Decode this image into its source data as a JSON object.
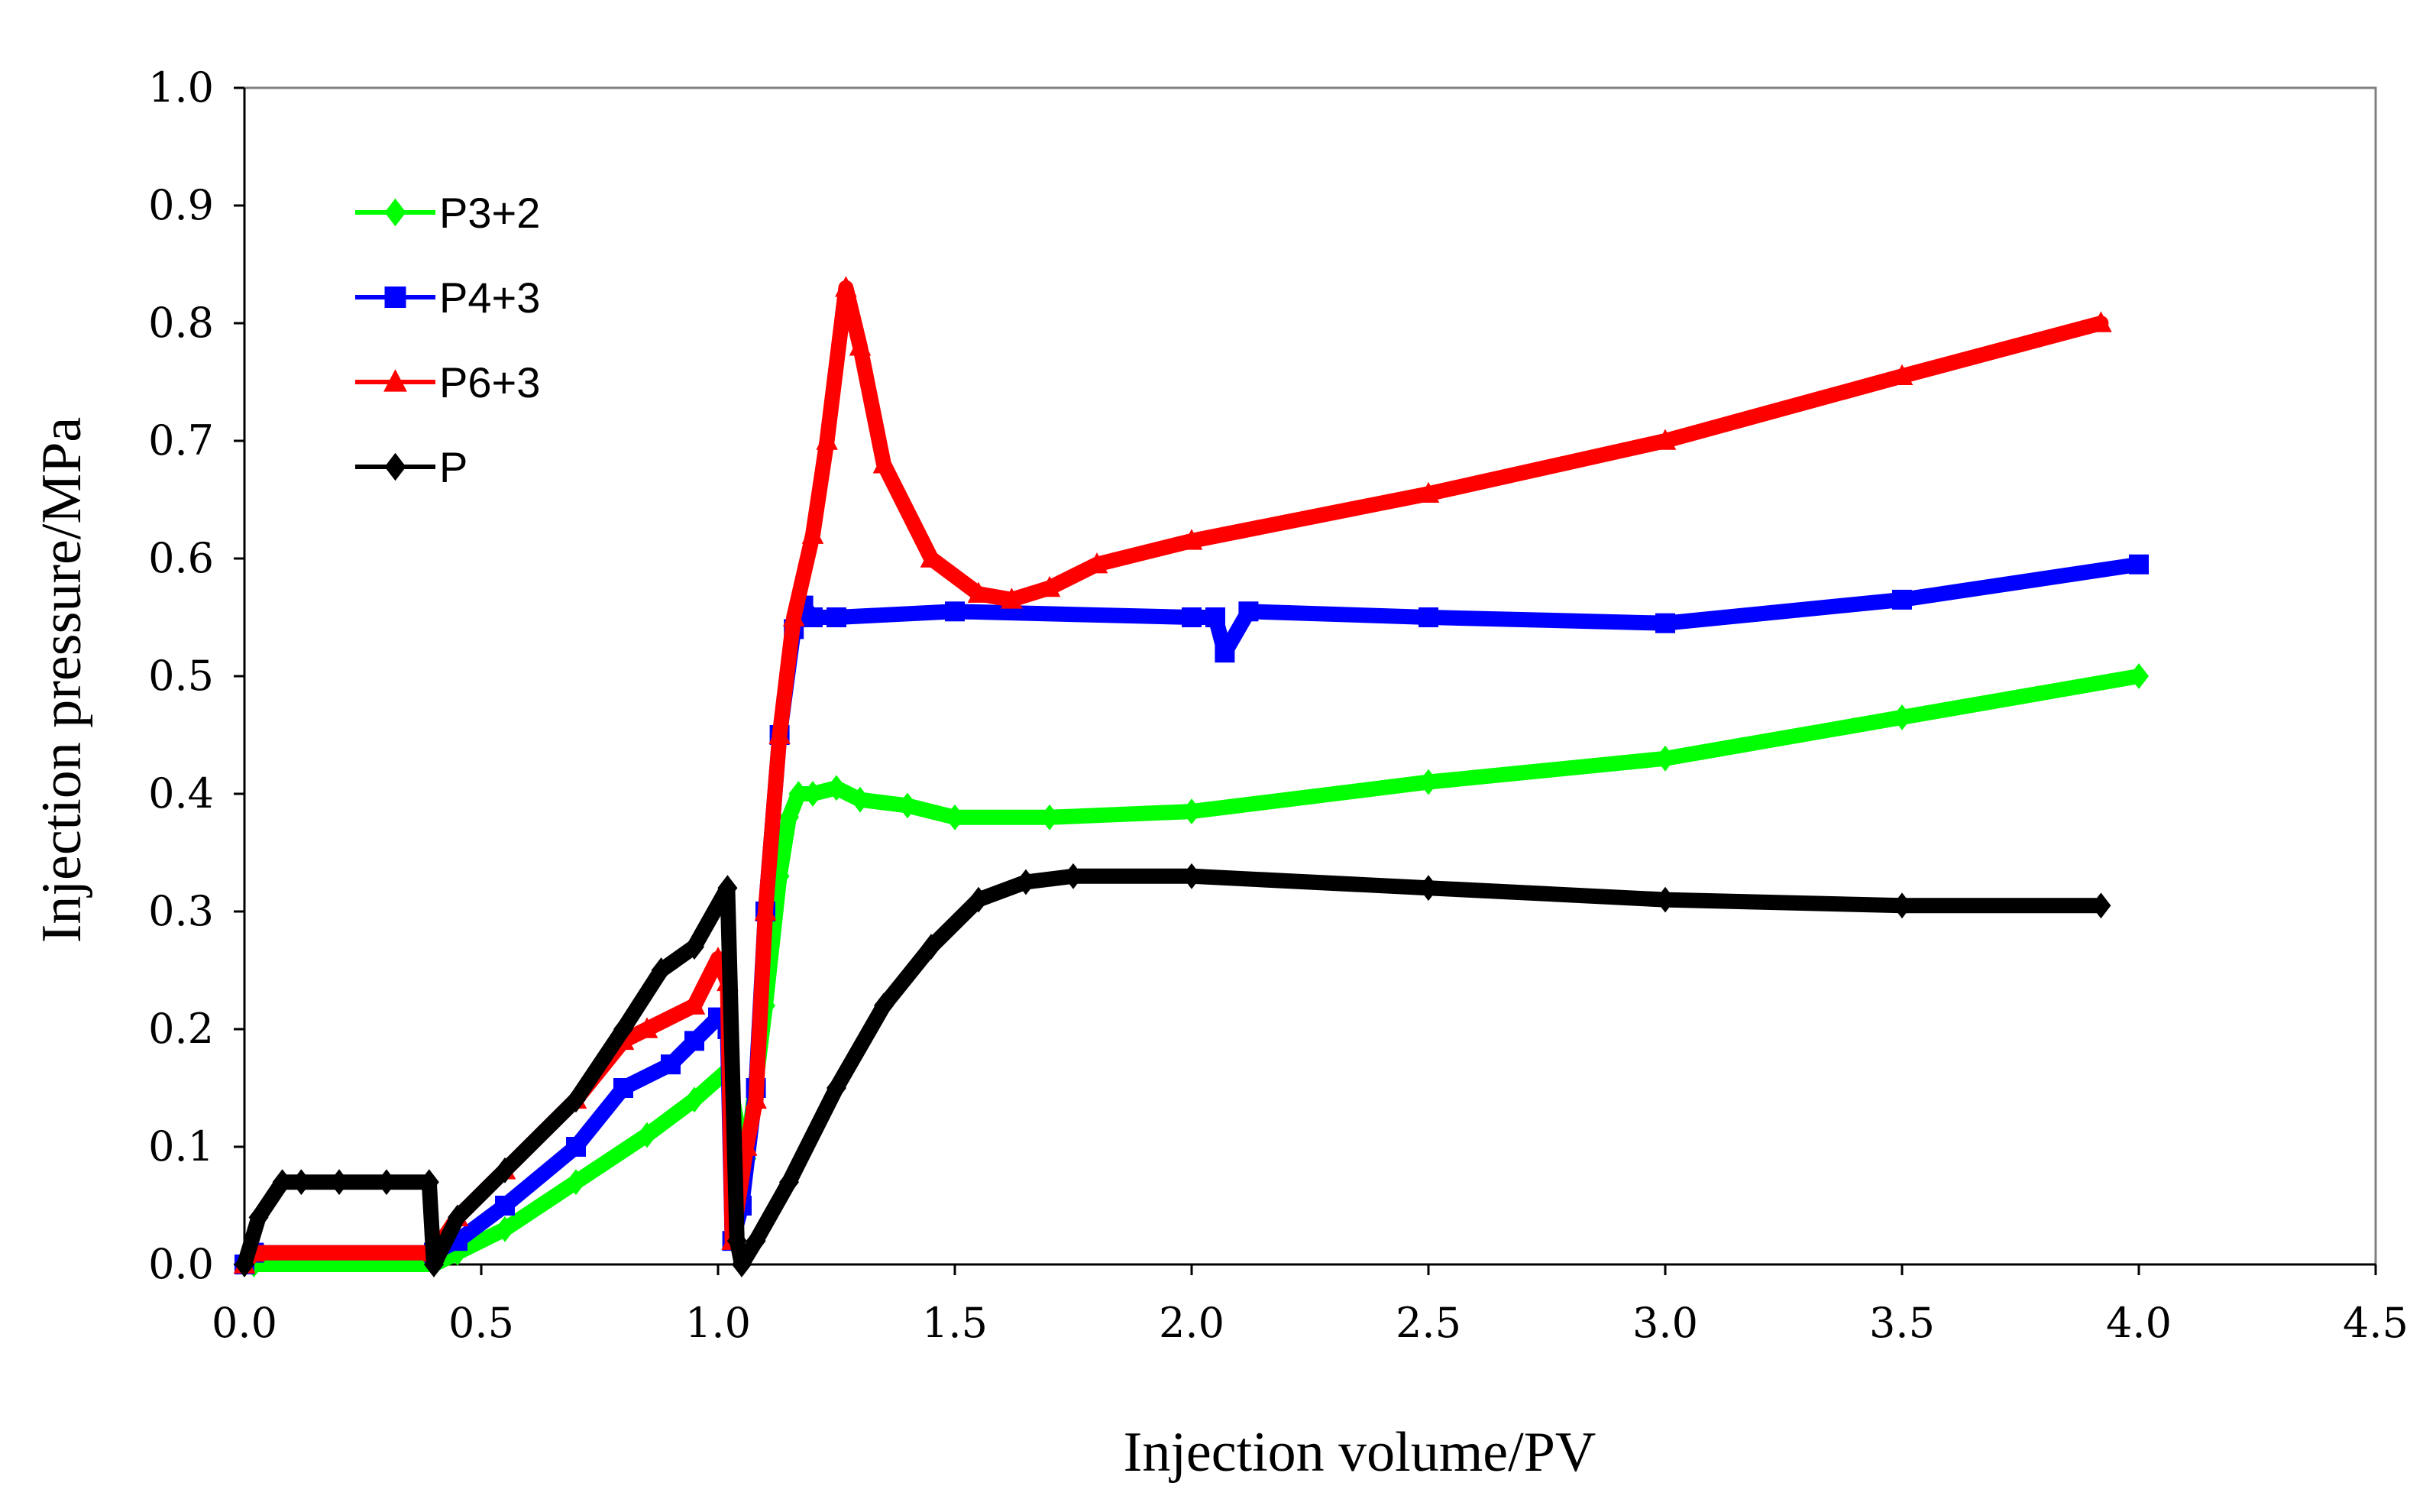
{
  "chart_data": {
    "type": "line",
    "title": "",
    "xlabel": "Injection volume/PV",
    "ylabel": "Injection pressure/MPa",
    "xlim": [
      0.0,
      4.5
    ],
    "ylim": [
      0.0,
      1.0
    ],
    "xticks": [
      "0.0",
      "0.5",
      "1.0",
      "1.5",
      "2.0",
      "2.5",
      "3.0",
      "3.5",
      "4.0",
      "4.5"
    ],
    "yticks": [
      "0.0",
      "0.1",
      "0.2",
      "0.3",
      "0.4",
      "0.5",
      "0.6",
      "0.7",
      "0.8",
      "0.9",
      "1.0"
    ],
    "grid": false,
    "legend_position": "top-left",
    "series": [
      {
        "name": "P3+2",
        "color": "#00ff00",
        "marker": "diamond",
        "x": [
          0.0,
          0.02,
          0.4,
          0.45,
          0.55,
          0.7,
          0.85,
          0.95,
          1.02,
          1.04,
          1.06,
          1.1,
          1.13,
          1.15,
          1.17,
          1.2,
          1.25,
          1.3,
          1.4,
          1.5,
          1.7,
          2.0,
          2.5,
          3.0,
          3.5,
          4.0
        ],
        "y": [
          0.0,
          0.0,
          0.0,
          0.01,
          0.03,
          0.07,
          0.11,
          0.14,
          0.165,
          0.12,
          0.09,
          0.22,
          0.33,
          0.38,
          0.4,
          0.4,
          0.405,
          0.395,
          0.39,
          0.38,
          0.38,
          0.385,
          0.41,
          0.43,
          0.465,
          0.5
        ]
      },
      {
        "name": "P4+3",
        "color": "#0000ff",
        "marker": "square",
        "x": [
          0.0,
          0.02,
          0.4,
          0.45,
          0.55,
          0.7,
          0.8,
          0.9,
          0.95,
          1.0,
          1.02,
          1.03,
          1.05,
          1.08,
          1.1,
          1.13,
          1.16,
          1.18,
          1.2,
          1.25,
          1.5,
          2.0,
          2.05,
          2.07,
          2.12,
          2.5,
          3.0,
          3.5,
          4.0
        ],
        "y": [
          0.0,
          0.01,
          0.01,
          0.02,
          0.05,
          0.1,
          0.15,
          0.17,
          0.19,
          0.21,
          0.2,
          0.02,
          0.05,
          0.15,
          0.3,
          0.45,
          0.54,
          0.56,
          0.55,
          0.55,
          0.555,
          0.55,
          0.55,
          0.52,
          0.555,
          0.55,
          0.545,
          0.565,
          0.595
        ]
      },
      {
        "name": "P6+3",
        "color": "#ff0000",
        "marker": "triangle",
        "x": [
          0.0,
          0.02,
          0.4,
          0.45,
          0.55,
          0.7,
          0.8,
          0.85,
          0.95,
          1.0,
          1.02,
          1.03,
          1.06,
          1.08,
          1.1,
          1.13,
          1.16,
          1.2,
          1.23,
          1.27,
          1.3,
          1.35,
          1.45,
          1.55,
          1.62,
          1.7,
          1.8,
          2.0,
          2.5,
          3.0,
          3.5,
          3.92
        ],
        "y": [
          0.0,
          0.01,
          0.01,
          0.04,
          0.08,
          0.14,
          0.19,
          0.2,
          0.22,
          0.26,
          0.24,
          0.02,
          0.1,
          0.14,
          0.3,
          0.45,
          0.55,
          0.62,
          0.7,
          0.83,
          0.78,
          0.68,
          0.6,
          0.57,
          0.565,
          0.575,
          0.595,
          0.615,
          0.655,
          0.7,
          0.755,
          0.8
        ]
      },
      {
        "name": "P",
        "color": "#000000",
        "marker": "diamond",
        "x": [
          0.0,
          0.03,
          0.08,
          0.12,
          0.2,
          0.3,
          0.39,
          0.4,
          0.45,
          0.55,
          0.7,
          0.8,
          0.88,
          0.95,
          1.02,
          1.04,
          1.05,
          1.08,
          1.15,
          1.25,
          1.35,
          1.45,
          1.55,
          1.65,
          1.75,
          2.0,
          2.5,
          3.0,
          3.5,
          3.92
        ],
        "y": [
          0.0,
          0.04,
          0.07,
          0.07,
          0.07,
          0.07,
          0.07,
          0.0,
          0.04,
          0.08,
          0.14,
          0.2,
          0.25,
          0.27,
          0.32,
          0.02,
          0.0,
          0.02,
          0.07,
          0.15,
          0.22,
          0.27,
          0.31,
          0.325,
          0.33,
          0.33,
          0.32,
          0.31,
          0.305,
          0.305
        ]
      }
    ]
  }
}
